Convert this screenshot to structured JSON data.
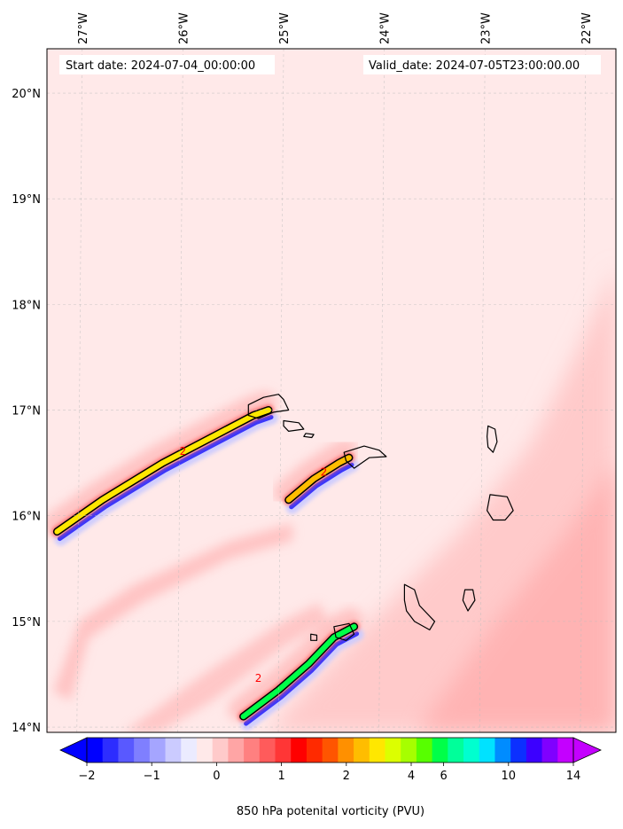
{
  "chart_data": {
    "type": "heatmap",
    "title": "",
    "start_date_text": "Start date: 2024-07-04_00:00:00",
    "valid_date_text": "Valid_date: 2024-07-05T23:00:00.00",
    "lon_range": [
      -27.35,
      -21.7
    ],
    "lat_range": [
      13.95,
      20.42
    ],
    "lon_ticks": [
      {
        "value": -27,
        "label": "27°W"
      },
      {
        "value": -26,
        "label": "26°W"
      },
      {
        "value": -25,
        "label": "25°W"
      },
      {
        "value": -24,
        "label": "24°W"
      },
      {
        "value": -23,
        "label": "23°W"
      },
      {
        "value": -22,
        "label": "22°W"
      }
    ],
    "lat_ticks": [
      {
        "value": 14,
        "label": "14°N"
      },
      {
        "value": 15,
        "label": "15°N"
      },
      {
        "value": 16,
        "label": "16°N"
      },
      {
        "value": 17,
        "label": "17°N"
      },
      {
        "value": 18,
        "label": "18°N"
      },
      {
        "value": 19,
        "label": "19°N"
      },
      {
        "value": 20,
        "label": "20°N"
      }
    ],
    "grid": true,
    "contour_levels": [
      -2,
      -1.75,
      -1.5,
      -1.25,
      -1,
      -0.75,
      -0.5,
      -0.25,
      0,
      0.25,
      0.5,
      0.75,
      1,
      1.25,
      1.5,
      1.75,
      2,
      2.5,
      3,
      3.5,
      4,
      5,
      6,
      7,
      8,
      9,
      10,
      11,
      12,
      13,
      14
    ],
    "colors": [
      "#0000ff",
      "#2d2dff",
      "#5959ff",
      "#7f7fff",
      "#a5a5ff",
      "#cbcbff",
      "#ebebff",
      "#ffe9e9",
      "#ffcaca",
      "#ffa5a5",
      "#ff8080",
      "#ff5b5b",
      "#ff3636",
      "#ff0000",
      "#ff2a00",
      "#ff5500",
      "#ff9000",
      "#ffbd00",
      "#ffe700",
      "#dcff00",
      "#a6ff00",
      "#57ff00",
      "#00ff48",
      "#00ff9a",
      "#00ffcf",
      "#00e2ff",
      "#008cff",
      "#0c30ff",
      "#3c00ff",
      "#8000ff",
      "#c400ff"
    ],
    "colorbar_ticks": [
      {
        "value": -2,
        "label": "−2"
      },
      {
        "value": -1,
        "label": "−1"
      },
      {
        "value": 0,
        "label": "0"
      },
      {
        "value": 1,
        "label": "1"
      },
      {
        "value": 2,
        "label": "2"
      },
      {
        "value": 4,
        "label": "4"
      },
      {
        "value": 6,
        "label": "6"
      },
      {
        "value": 10,
        "label": "10"
      },
      {
        "value": 14,
        "label": "14"
      }
    ],
    "colorbar_label": "850 hPa potenital vorticity (PVU)",
    "colorbar_extend": "both",
    "contour_line_value": 2,
    "contour_line_labels": [
      "2",
      "2",
      "2"
    ],
    "features": [
      {
        "name": "streak-north",
        "type": "pv-streak",
        "points": [
          [
            -27.25,
            15.85
          ],
          [
            -26.8,
            16.15
          ],
          [
            -26.2,
            16.5
          ],
          [
            -25.7,
            16.75
          ],
          [
            -25.3,
            16.95
          ],
          [
            -25.15,
            17.0
          ]
        ],
        "peak_pv": 2.5
      },
      {
        "name": "streak-middle",
        "type": "pv-streak",
        "points": [
          [
            -24.95,
            16.15
          ],
          [
            -24.7,
            16.35
          ],
          [
            -24.45,
            16.5
          ],
          [
            -24.35,
            16.55
          ]
        ],
        "peak_pv": 2.2
      },
      {
        "name": "streak-south",
        "type": "pv-streak",
        "points": [
          [
            -25.4,
            14.1
          ],
          [
            -25.05,
            14.35
          ],
          [
            -24.75,
            14.6
          ],
          [
            -24.5,
            14.85
          ],
          [
            -24.3,
            14.95
          ]
        ],
        "peak_pv": 5.5
      }
    ],
    "islands": [
      {
        "name": "santo-antao",
        "points": [
          [
            -25.35,
            17.05
          ],
          [
            -25.2,
            17.12
          ],
          [
            -25.05,
            17.15
          ],
          [
            -25.0,
            17.1
          ],
          [
            -24.95,
            17.0
          ],
          [
            -25.1,
            16.98
          ],
          [
            -25.25,
            16.92
          ],
          [
            -25.35,
            16.95
          ]
        ]
      },
      {
        "name": "sao-vicente",
        "points": [
          [
            -25.0,
            16.9
          ],
          [
            -24.85,
            16.88
          ],
          [
            -24.8,
            16.82
          ],
          0,
          [
            -24.95,
            16.8
          ],
          [
            -25.0,
            16.85
          ]
        ]
      },
      {
        "name": "santa-luzia",
        "points": [
          [
            -24.78,
            16.78
          ],
          [
            -24.7,
            16.77
          ],
          [
            -24.72,
            16.74
          ],
          [
            -24.8,
            16.75
          ]
        ]
      },
      {
        "name": "sao-nicolau",
        "points": [
          [
            -24.4,
            16.6
          ],
          [
            -24.2,
            16.66
          ],
          [
            -24.05,
            16.62
          ],
          [
            -23.98,
            16.56
          ],
          [
            -24.15,
            16.55
          ],
          [
            -24.3,
            16.45
          ],
          [
            -24.38,
            16.52
          ]
        ]
      },
      {
        "name": "sal",
        "points": [
          [
            -22.97,
            16.85
          ],
          [
            -22.9,
            16.82
          ],
          [
            -22.88,
            16.7
          ],
          [
            -22.92,
            16.6
          ],
          [
            -22.97,
            16.65
          ],
          [
            -22.98,
            16.75
          ]
        ]
      },
      {
        "name": "boa-vista",
        "points": [
          [
            -22.95,
            16.2
          ],
          [
            -22.78,
            16.18
          ],
          [
            -22.72,
            16.05
          ],
          [
            -22.8,
            15.96
          ],
          [
            -22.92,
            15.96
          ],
          [
            -22.98,
            16.05
          ]
        ]
      },
      {
        "name": "maio",
        "points": [
          [
            -23.2,
            15.3
          ],
          [
            -23.12,
            15.3
          ],
          [
            -23.1,
            15.2
          ],
          [
            -23.17,
            15.1
          ],
          [
            -23.22,
            15.2
          ]
        ]
      },
      {
        "name": "santiago",
        "points": [
          [
            -23.8,
            15.35
          ],
          [
            -23.7,
            15.3
          ],
          [
            -23.65,
            15.15
          ],
          [
            -23.5,
            15.0
          ],
          [
            -23.55,
            14.92
          ],
          [
            -23.7,
            15.0
          ],
          [
            -23.78,
            15.1
          ],
          [
            -23.8,
            15.2
          ]
        ]
      },
      {
        "name": "fogo",
        "points": [
          [
            -24.5,
            14.95
          ],
          [
            -24.35,
            14.98
          ],
          [
            -24.3,
            14.88
          ],
          0,
          [
            -24.38,
            14.82
          ],
          [
            -24.48,
            14.85
          ]
        ]
      },
      {
        "name": "brava",
        "points": [
          [
            -24.73,
            14.88
          ],
          [
            -24.67,
            14.87
          ],
          [
            -24.67,
            14.82
          ],
          [
            -24.73,
            14.82
          ]
        ]
      }
    ]
  }
}
